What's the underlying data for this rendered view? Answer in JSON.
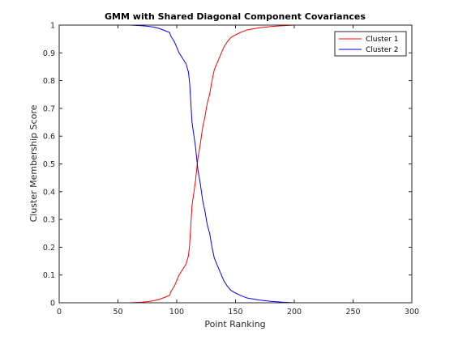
{
  "chart_data": {
    "type": "line",
    "title": "GMM with Shared Diagonal Component Covariances",
    "xlabel": "Point Ranking",
    "ylabel": "Cluster Membership Score",
    "xlim": [
      0,
      300
    ],
    "ylim": [
      0,
      1
    ],
    "xticks": [
      0,
      50,
      100,
      150,
      200,
      250,
      300
    ],
    "yticks": [
      0,
      0.1,
      0.2,
      0.3,
      0.4,
      0.5,
      0.6,
      0.7,
      0.8,
      0.9,
      1
    ],
    "grid": false,
    "legend_position": "top-right",
    "series": [
      {
        "name": "Cluster 1",
        "color": "#ff0000",
        "x": [
          0,
          40,
          60,
          70,
          75,
          80,
          85,
          90,
          94,
          95,
          98,
          100,
          102,
          105,
          108,
          110,
          111,
          112,
          113,
          114,
          115,
          116,
          117,
          118,
          120,
          122,
          124,
          126,
          128,
          130,
          132,
          134,
          136,
          138,
          140,
          143,
          146,
          150,
          155,
          160,
          170,
          180,
          190,
          200,
          250,
          300
        ],
        "y": [
          0,
          0,
          0,
          0.002,
          0.004,
          0.007,
          0.012,
          0.02,
          0.027,
          0.04,
          0.06,
          0.08,
          0.1,
          0.12,
          0.14,
          0.17,
          0.21,
          0.28,
          0.35,
          0.38,
          0.41,
          0.44,
          0.48,
          0.52,
          0.57,
          0.63,
          0.67,
          0.72,
          0.75,
          0.8,
          0.84,
          0.86,
          0.88,
          0.9,
          0.92,
          0.94,
          0.955,
          0.965,
          0.975,
          0.983,
          0.99,
          0.995,
          0.998,
          1,
          1,
          1
        ]
      },
      {
        "name": "Cluster 2",
        "color": "#0000ff",
        "x": [
          0,
          40,
          60,
          70,
          75,
          80,
          85,
          90,
          94,
          95,
          98,
          100,
          102,
          105,
          108,
          110,
          111,
          112,
          113,
          114,
          115,
          116,
          117,
          118,
          120,
          122,
          124,
          126,
          128,
          130,
          132,
          134,
          136,
          138,
          140,
          143,
          146,
          150,
          155,
          160,
          170,
          180,
          190,
          200,
          250,
          300
        ],
        "y": [
          1,
          1,
          1,
          0.998,
          0.996,
          0.993,
          0.988,
          0.98,
          0.973,
          0.96,
          0.94,
          0.92,
          0.9,
          0.88,
          0.86,
          0.83,
          0.79,
          0.72,
          0.65,
          0.62,
          0.59,
          0.56,
          0.52,
          0.48,
          0.43,
          0.37,
          0.33,
          0.28,
          0.25,
          0.2,
          0.16,
          0.14,
          0.12,
          0.1,
          0.08,
          0.06,
          0.045,
          0.035,
          0.025,
          0.017,
          0.01,
          0.005,
          0.002,
          0,
          0,
          0
        ]
      }
    ]
  }
}
